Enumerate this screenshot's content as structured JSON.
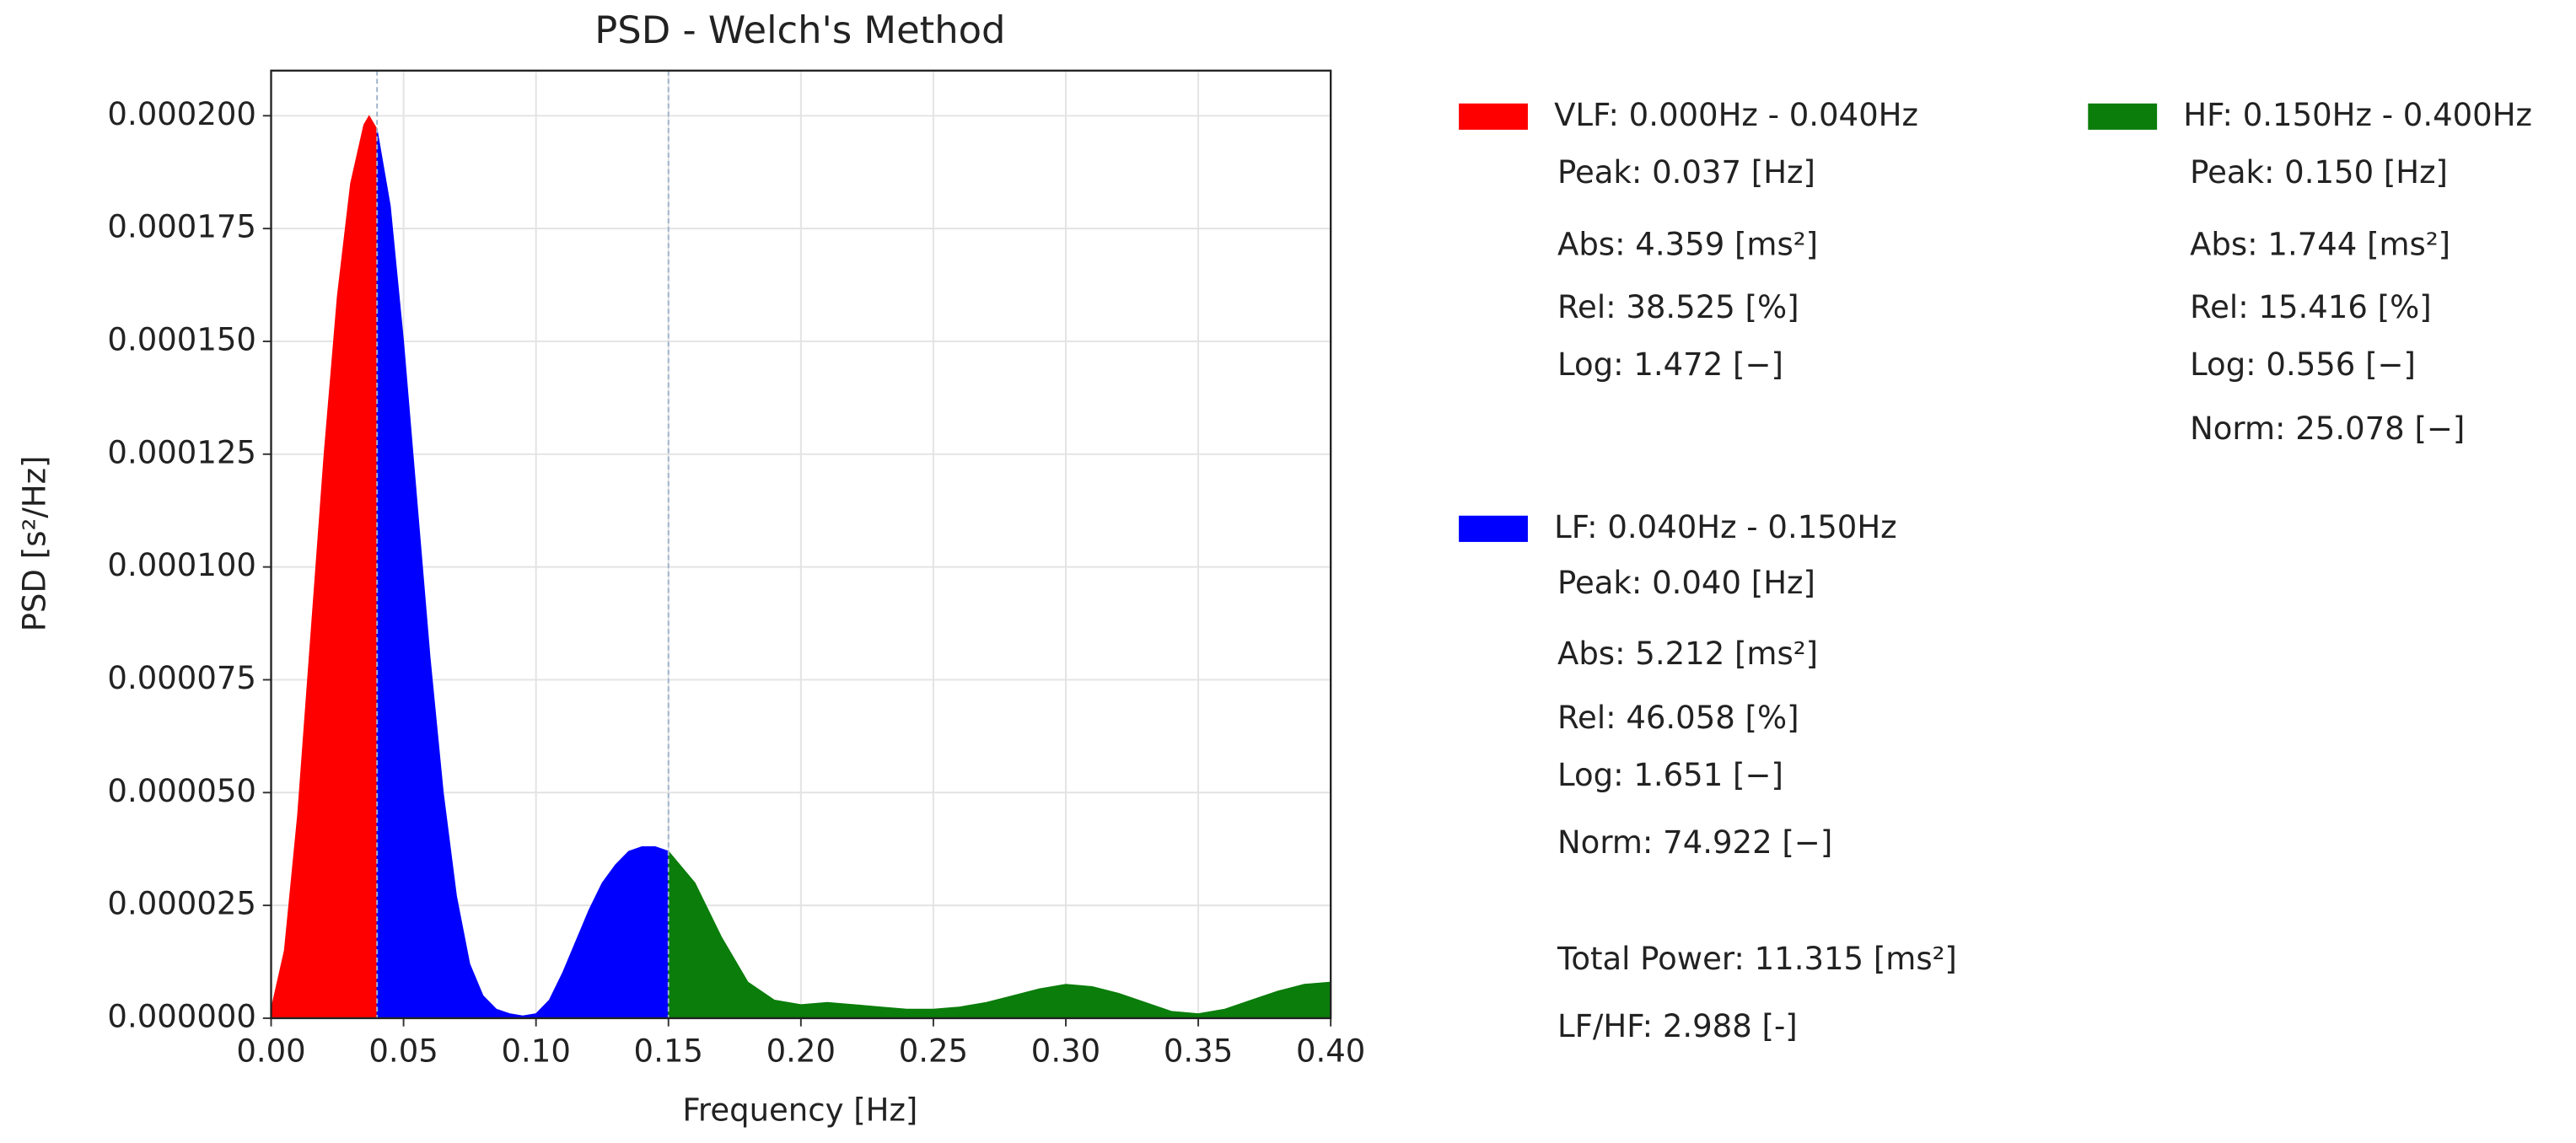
{
  "chart_data": {
    "type": "area",
    "title": "PSD - Welch's Method",
    "x_label": "Frequency [Hz]",
    "y_label": "PSD [s²/Hz]",
    "xlim": [
      0,
      0.4
    ],
    "ylim": [
      0,
      0.00021
    ],
    "xticks": [
      {
        "value": 0,
        "label": "0.00"
      },
      0.05,
      {
        "value": 0.1,
        "label": "0.10"
      },
      0.15,
      {
        "value": 0.2,
        "label": "0.20"
      },
      0.25,
      {
        "value": 0.3,
        "label": "0.30"
      },
      0.35,
      {
        "value": 0.4,
        "label": "0.40"
      }
    ],
    "yticks": [
      {
        "value": 0,
        "label": "0.000000"
      },
      {
        "value": 2.5e-05,
        "label": "0.000025"
      },
      {
        "value": 5e-05,
        "label": "0.000050"
      },
      {
        "value": 7.5e-05,
        "label": "0.000075"
      },
      {
        "value": 0.0001,
        "label": "0.000100"
      },
      {
        "value": 0.000125,
        "label": "0.000125"
      },
      {
        "value": 0.00015,
        "label": "0.000150"
      },
      {
        "value": 0.000175,
        "label": "0.000175"
      },
      {
        "value": 0.0002,
        "label": "0.000200"
      }
    ],
    "grid": true,
    "band_lines": [
      0.04,
      0.15
    ],
    "x": [
      0,
      0.005,
      0.01,
      0.015,
      0.02,
      0.025,
      0.03,
      0.035,
      0.037,
      0.04,
      0.045,
      0.05,
      0.055,
      0.06,
      0.065,
      0.07,
      0.075,
      0.08,
      0.085,
      0.09,
      0.095,
      0.1,
      0.105,
      0.11,
      0.115,
      0.12,
      0.125,
      0.13,
      0.135,
      0.14,
      0.145,
      0.15,
      0.16,
      0.17,
      0.18,
      0.19,
      0.2,
      0.21,
      0.22,
      0.23,
      0.24,
      0.25,
      0.26,
      0.27,
      0.28,
      0.29,
      0.3,
      0.31,
      0.32,
      0.33,
      0.34,
      0.35,
      0.36,
      0.37,
      0.38,
      0.39,
      0.4
    ],
    "series": [
      {
        "name": "VLF: 0.000Hz - 0.040Hz",
        "color": "#ff0000",
        "values": [
          2e-06,
          1.5e-05,
          4.5e-05,
          8.5e-05,
          0.000125,
          0.00016,
          0.000185,
          0.000198,
          0.0002,
          0.000197,
          null,
          null,
          null,
          null,
          null,
          null,
          null,
          null,
          null,
          null,
          null,
          null,
          null,
          null,
          null,
          null,
          null,
          null,
          null,
          null,
          null,
          null,
          null,
          null,
          null,
          null,
          null,
          null,
          null,
          null,
          null,
          null,
          null,
          null,
          null,
          null,
          null,
          null,
          null,
          null,
          null,
          null,
          null,
          null,
          null,
          null,
          null
        ],
        "stats": [
          "Peak: 0.037 [Hz]",
          "Abs:  4.359 [ms²]",
          "Rel:  38.525 [%]",
          "Log:  1.472 [−]"
        ]
      },
      {
        "name": "LF: 0.040Hz - 0.150Hz",
        "color": "#0000ff",
        "values": [
          null,
          null,
          null,
          null,
          null,
          null,
          null,
          null,
          null,
          0.000197,
          0.00018,
          0.00015,
          0.000115,
          8e-05,
          5e-05,
          2.7e-05,
          1.2e-05,
          5e-06,
          2e-06,
          1e-06,
          5e-07,
          1e-06,
          4e-06,
          1e-05,
          1.7e-05,
          2.4e-05,
          3e-05,
          3.4e-05,
          3.7e-05,
          3.8e-05,
          3.8e-05,
          3.7e-05,
          null,
          null,
          null,
          null,
          null,
          null,
          null,
          null,
          null,
          null,
          null,
          null,
          null,
          null,
          null,
          null,
          null,
          null,
          null,
          null,
          null,
          null,
          null,
          null,
          null
        ],
        "stats": [
          "Peak: 0.040 [Hz]",
          "Abs:  5.212 [ms²]",
          "Rel:  46.058 [%]",
          "Log:  1.651 [−]",
          "Norm: 74.922 [−]"
        ]
      },
      {
        "name": "HF: 0.150Hz - 0.400Hz",
        "color": "#0a7d0a",
        "values": [
          null,
          null,
          null,
          null,
          null,
          null,
          null,
          null,
          null,
          null,
          null,
          null,
          null,
          null,
          null,
          null,
          null,
          null,
          null,
          null,
          null,
          null,
          null,
          null,
          null,
          null,
          null,
          null,
          null,
          null,
          null,
          3.7e-05,
          3e-05,
          1.8e-05,
          8e-06,
          4e-06,
          3e-06,
          3.5e-06,
          3e-06,
          2.5e-06,
          2e-06,
          2e-06,
          2.5e-06,
          3.5e-06,
          5e-06,
          6.5e-06,
          7.5e-06,
          7e-06,
          5.5e-06,
          3.5e-06,
          1.5e-06,
          1e-06,
          2e-06,
          4e-06,
          6e-06,
          7.5e-06,
          8e-06
        ],
        "stats": [
          "Peak: 0.150 [Hz]",
          "Abs:  1.744 [ms²]",
          "Rel:  15.416 [%]",
          "Log:  0.556 [−]",
          "Norm: 25.078 [−]"
        ]
      }
    ],
    "summary": [
      "Total Power: 11.315 [ms²]",
      "LF/HF: 2.988 [-]"
    ]
  }
}
